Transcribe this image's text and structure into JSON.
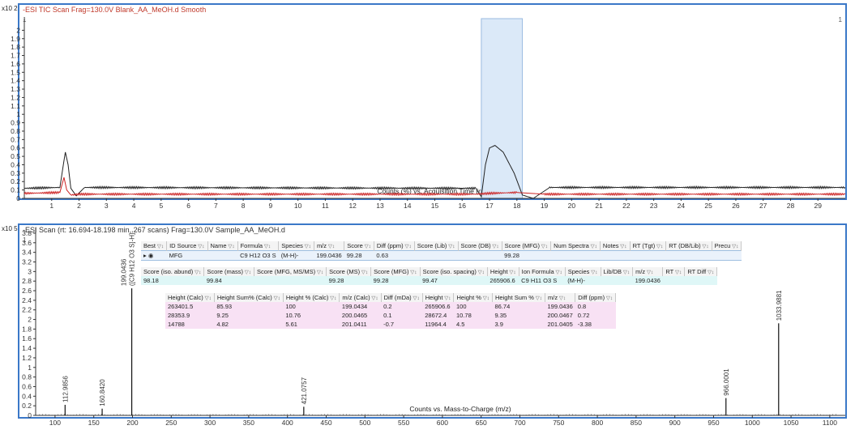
{
  "top_panel": {
    "title": "-ESI TIC Scan Frag=130.0V Blank_AA_MeOH.d  Smooth",
    "multiplier": "x10 2",
    "corner_left": "1",
    "corner_right": "1"
  },
  "bottom_panel": {
    "title": "-ESI Scan (rt: 16.694-18.198 min, 267 scans) Frag=130.0V Sample_AA_MeOH.d",
    "multiplier": "x10 5",
    "corner_left": "1"
  },
  "chart_data": [
    {
      "type": "line",
      "xlabel": "Counts (%) vs. Acquisition Time (min)",
      "xlim": [
        0,
        30
      ],
      "ylim": [
        0,
        2.1
      ],
      "x_ticks": [
        1,
        2,
        3,
        4,
        5,
        6,
        7,
        8,
        9,
        10,
        11,
        12,
        13,
        14,
        15,
        16,
        17,
        18,
        19,
        20,
        21,
        22,
        23,
        24,
        25,
        26,
        27,
        28,
        29
      ],
      "y_ticks": [
        0,
        0.1,
        0.2,
        0.3,
        0.4,
        0.5,
        0.6,
        0.7,
        0.8,
        0.9,
        1,
        1.1,
        1.2,
        1.3,
        1.4,
        1.5,
        1.6,
        1.7,
        1.8,
        1.9,
        2
      ],
      "highlight_range": [
        16.7,
        18.2
      ],
      "series": [
        {
          "color": "#222222",
          "x": [
            0,
            1.3,
            1.45,
            1.5,
            1.6,
            1.7,
            1.9,
            2.2,
            16.5,
            16.7,
            16.85,
            17.0,
            17.2,
            17.5,
            17.9,
            18.2,
            18.6,
            19.2,
            30
          ],
          "y": [
            0.12,
            0.13,
            0.45,
            0.55,
            0.4,
            0.12,
            0.03,
            0.13,
            0.12,
            0.02,
            0.4,
            0.6,
            0.63,
            0.55,
            0.3,
            0.04,
            0.0,
            0.13,
            0.13
          ]
        },
        {
          "color": "#cc2222",
          "x": [
            0,
            1.3,
            1.45,
            1.55,
            1.7,
            2.0,
            16.5,
            17.0,
            18.0,
            19.0,
            30
          ],
          "y": [
            0.06,
            0.07,
            0.25,
            0.1,
            0.04,
            0.05,
            0.05,
            0.06,
            0.07,
            0.05,
            0.05
          ]
        }
      ]
    },
    {
      "type": "bar",
      "xlabel": "Counts vs. Mass-to-Charge (m/z)",
      "xlim": [
        75,
        1120
      ],
      "ylim": [
        0,
        3.85
      ],
      "x_ticks": [
        100,
        150,
        200,
        250,
        300,
        350,
        400,
        450,
        500,
        550,
        600,
        650,
        700,
        750,
        800,
        850,
        900,
        950,
        1000,
        1050,
        1100
      ],
      "y_ticks": [
        0,
        0.2,
        0.4,
        0.6,
        0.8,
        1,
        1.2,
        1.4,
        1.6,
        1.8,
        2,
        2.2,
        2.4,
        2.6,
        2.8,
        3,
        3.2,
        3.4,
        3.6,
        3.8
      ],
      "peaks": [
        {
          "mz": 112.9856,
          "value": 0.22,
          "label": "112.9856"
        },
        {
          "mz": 160.842,
          "value": 0.14,
          "label": "160.8420"
        },
        {
          "mz": 199.0436,
          "value": 2.65,
          "label": "199.0436",
          "label2": "([C9 H12 O3 S]-H]-"
        },
        {
          "mz": 421.0757,
          "value": 0.18,
          "label": "421.0757"
        },
        {
          "mz": 966.0001,
          "value": 0.36,
          "label": "966.0001"
        },
        {
          "mz": 1033.9881,
          "value": 1.92,
          "label": "1033.9881"
        }
      ]
    }
  ],
  "results": {
    "main_header": [
      "Best",
      "ID Source",
      "Name",
      "Formula",
      "Species",
      "m/z",
      "Score",
      "Diff (ppm)",
      "Score (Lib)",
      "Score (DB)",
      "Score (MFG)",
      "Num Spectra",
      "Notes",
      "RT (Tgt)",
      "RT (DB/Lib)",
      "Precu"
    ],
    "main_row": [
      "",
      "MFG",
      "",
      "C9 H12 O3 S",
      "(M-H)-",
      "199.0436",
      "99.28",
      "0.63",
      "",
      "",
      "99.28",
      "",
      "",
      "",
      "",
      ""
    ],
    "score_header": [
      "Score (iso. abund)",
      "Score (mass)",
      "Score (MFG, MS/MS)",
      "Score (MS)",
      "Score (MFG)",
      "Score (iso. spacing)",
      "Height",
      "Ion Formula",
      "Species",
      "Lib/DB",
      "m/z",
      "RT",
      "RT Diff"
    ],
    "score_row": [
      "98.18",
      "99.84",
      "",
      "99.28",
      "99.28",
      "99.47",
      "265906.6",
      "C9 H11 O3 S",
      "(M-H)-",
      "",
      "199.0436",
      "",
      ""
    ],
    "iso_header": [
      "Height (Calc)",
      "Height Sum% (Calc)",
      "Height % (Calc)",
      "m/z (Calc)",
      "Diff (mDa)",
      "Height",
      "Height %",
      "Height Sum %",
      "m/z",
      "Diff (ppm)"
    ],
    "iso_rows": [
      [
        "263401.5",
        "85.93",
        "100",
        "199.0434",
        "0.2",
        "265906.6",
        "100",
        "86.74",
        "199.0436",
        "0.8"
      ],
      [
        "28353.9",
        "9.25",
        "10.76",
        "200.0465",
        "0.1",
        "28672.4",
        "10.78",
        "9.35",
        "200.0467",
        "0.72"
      ],
      [
        "14788",
        "4.82",
        "5.61",
        "201.0411",
        "-0.7",
        "11964.4",
        "4.5",
        "3.9",
        "201.0405",
        "-3.38"
      ]
    ]
  }
}
